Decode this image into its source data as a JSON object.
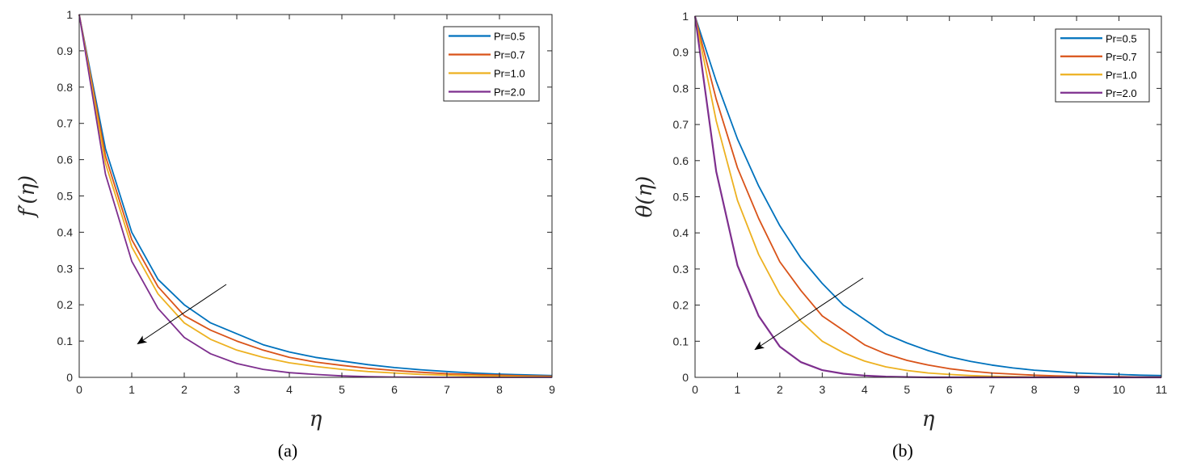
{
  "chart_data": [
    {
      "type": "line",
      "ylabel": "f′(η)",
      "xlabel": "η",
      "caption": "(a)",
      "xlim": [
        0,
        9
      ],
      "ylim": [
        0,
        1
      ],
      "xticks": [
        "0",
        "1",
        "2",
        "3",
        "4",
        "5",
        "6",
        "7",
        "8",
        "9"
      ],
      "yticks": [
        "0",
        "0.1",
        "0.2",
        "0.3",
        "0.4",
        "0.5",
        "0.6",
        "0.7",
        "0.8",
        "0.9",
        "1"
      ],
      "legend_position": "top-right",
      "grid": false,
      "annotation": "arrow pointing down-left indicating increasing Pr",
      "x": [
        0,
        0.5,
        1,
        1.5,
        2,
        2.5,
        3,
        3.5,
        4,
        4.5,
        5,
        5.5,
        6,
        6.5,
        7,
        7.5,
        8,
        8.5,
        9
      ],
      "series": [
        {
          "name": "Pr=0.5",
          "color": "#0072BD",
          "values": [
            1.0,
            0.63,
            0.4,
            0.27,
            0.2,
            0.15,
            0.12,
            0.09,
            0.07,
            0.055,
            0.045,
            0.035,
            0.027,
            0.021,
            0.016,
            0.012,
            0.009,
            0.007,
            0.005
          ]
        },
        {
          "name": "Pr=0.7",
          "color": "#D95319",
          "values": [
            1.0,
            0.61,
            0.38,
            0.25,
            0.17,
            0.13,
            0.1,
            0.075,
            0.055,
            0.042,
            0.033,
            0.025,
            0.019,
            0.014,
            0.01,
            0.008,
            0.006,
            0.004,
            0.003
          ]
        },
        {
          "name": "Pr=1.0",
          "color": "#EDB120",
          "values": [
            1.0,
            0.59,
            0.36,
            0.23,
            0.15,
            0.105,
            0.075,
            0.055,
            0.04,
            0.03,
            0.022,
            0.016,
            0.012,
            0.008,
            0.006,
            0.004,
            0.003,
            0.002,
            0.001
          ]
        },
        {
          "name": "Pr=2.0",
          "color": "#7E2F8E",
          "values": [
            1.0,
            0.56,
            0.32,
            0.19,
            0.11,
            0.065,
            0.038,
            0.022,
            0.013,
            0.008,
            0.004,
            0.002,
            0.001,
            0.0005,
            0.0,
            0.0,
            0.0,
            0.0,
            0.0
          ]
        }
      ]
    },
    {
      "type": "line",
      "ylabel": "θ(η)",
      "xlabel": "η",
      "caption": "(b)",
      "xlim": [
        0,
        11
      ],
      "ylim": [
        0,
        1
      ],
      "xticks": [
        "0",
        "1",
        "2",
        "3",
        "4",
        "5",
        "6",
        "7",
        "8",
        "9",
        "10",
        "11"
      ],
      "yticks": [
        "0",
        "0.1",
        "0.2",
        "0.3",
        "0.4",
        "0.5",
        "0.6",
        "0.7",
        "0.8",
        "0.9",
        "1"
      ],
      "legend_position": "top-right",
      "grid": false,
      "annotation": "arrow pointing down-left indicating increasing Pr",
      "x": [
        0,
        0.5,
        1,
        1.5,
        2,
        2.5,
        3,
        3.5,
        4,
        4.5,
        5,
        5.5,
        6,
        6.5,
        7,
        7.5,
        8,
        8.5,
        9,
        9.5,
        10,
        10.5,
        11
      ],
      "series": [
        {
          "name": "Pr=0.5",
          "color": "#0072BD",
          "values": [
            1.0,
            0.82,
            0.66,
            0.53,
            0.42,
            0.33,
            0.26,
            0.2,
            0.16,
            0.12,
            0.095,
            0.074,
            0.057,
            0.044,
            0.034,
            0.026,
            0.02,
            0.016,
            0.012,
            0.01,
            0.008,
            0.006,
            0.005
          ]
        },
        {
          "name": "Pr=0.7",
          "color": "#D95319",
          "values": [
            1.0,
            0.77,
            0.58,
            0.44,
            0.32,
            0.24,
            0.17,
            0.13,
            0.09,
            0.065,
            0.047,
            0.034,
            0.024,
            0.017,
            0.012,
            0.009,
            0.006,
            0.004,
            0.003,
            0.002,
            0.002,
            0.001,
            0.001
          ]
        },
        {
          "name": "Pr=1.0",
          "color": "#EDB120",
          "values": [
            1.0,
            0.71,
            0.49,
            0.34,
            0.23,
            0.155,
            0.1,
            0.068,
            0.045,
            0.029,
            0.019,
            0.012,
            0.008,
            0.005,
            0.003,
            0.002,
            0.001,
            0.001,
            0.0,
            0.0,
            0.0,
            0.0,
            0.0
          ]
        },
        {
          "name": "Pr=2.0",
          "color": "#7E2F8E",
          "values": [
            1.0,
            0.57,
            0.31,
            0.17,
            0.085,
            0.042,
            0.02,
            0.01,
            0.005,
            0.002,
            0.001,
            0.0,
            0.0,
            0.0,
            0.0,
            0.0,
            0.0,
            0.0,
            0.0,
            0.0,
            0.0,
            0.0,
            0.0
          ]
        }
      ]
    }
  ]
}
